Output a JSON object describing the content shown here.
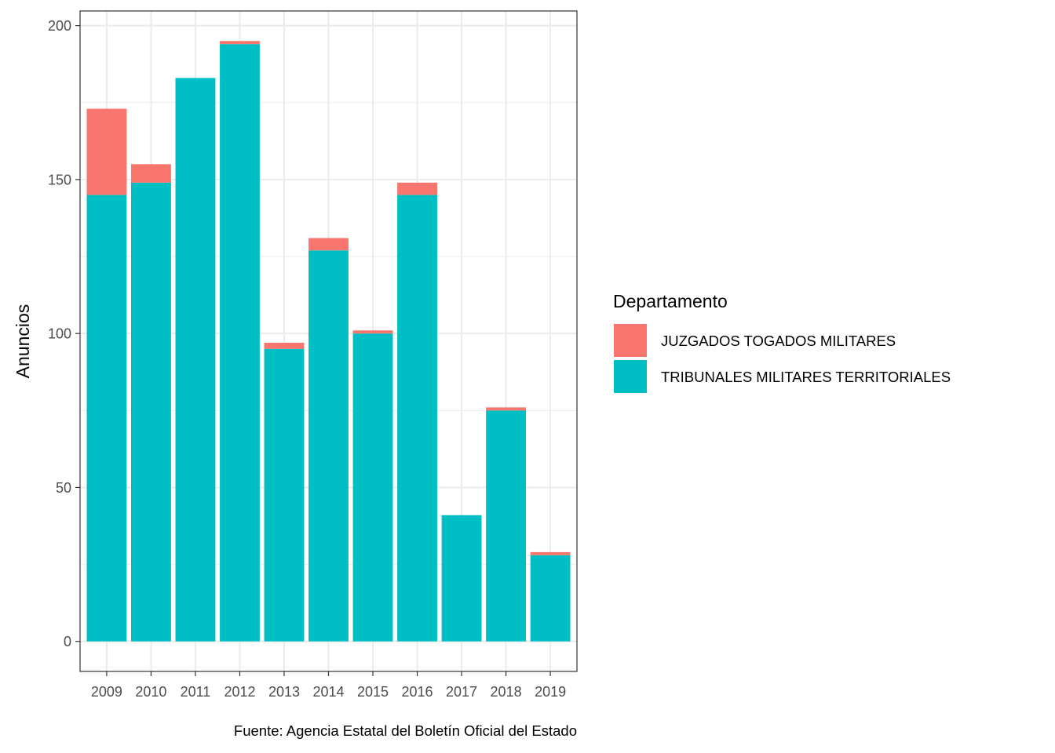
{
  "chart_data": {
    "type": "bar",
    "stacked": true,
    "categories": [
      "2009",
      "2010",
      "2011",
      "2012",
      "2013",
      "2014",
      "2015",
      "2016",
      "2017",
      "2018",
      "2019"
    ],
    "series": [
      {
        "name": "JUZGADOS TOGADOS MILITARES",
        "color": "#F8766D",
        "values": [
          28,
          6,
          0,
          1,
          2,
          4,
          1,
          4,
          0,
          1,
          1
        ]
      },
      {
        "name": "TRIBUNALES MILITARES TERRITORIALES",
        "color": "#00BFC4",
        "values": [
          145,
          149,
          183,
          194,
          95,
          127,
          100,
          145,
          41,
          75,
          28
        ]
      }
    ],
    "ylabel": "Anuncios",
    "xlabel": "",
    "ylim": [
      -9.75,
      204.75
    ],
    "yticks": [
      0,
      50,
      100,
      150,
      200
    ],
    "grid": true,
    "legend": {
      "title": "Departamento",
      "position": "right"
    },
    "caption": "Fuente: Agencia Estatal del Boletín Oficial del Estado"
  }
}
